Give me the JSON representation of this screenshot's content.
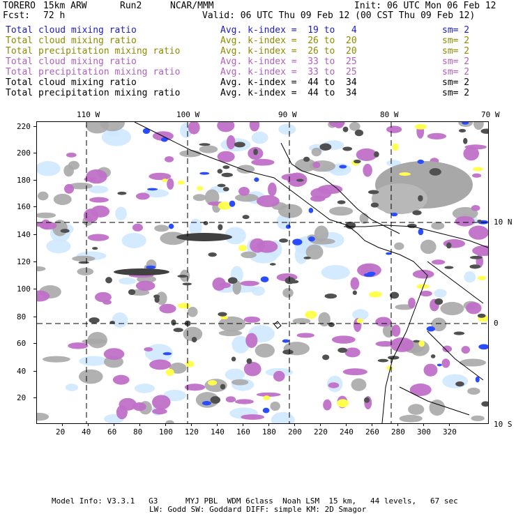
{
  "header": {
    "model": "TORERO",
    "resolution": "15km ARW",
    "run": "Run2",
    "org": "NCAR/MMM",
    "init": "Init: 06 UTC Mon 06 Feb 12",
    "fcst_label": "Fcst:",
    "fcst_value": "72 h",
    "valid": "Valid: 06 UTC Thu 09 Feb 12 (00 CST Thu 09 Feb 12)"
  },
  "legend": [
    {
      "field": "Total cloud mixing ratio",
      "index": "Avg. k-index =  19 to   4",
      "sm": "sm= 2",
      "color": "#1c1ccc"
    },
    {
      "field": "Total cloud mixing ratio",
      "index": "Avg. k-index =  26 to  20",
      "sm": "sm= 2",
      "color": "#8c8c00"
    },
    {
      "field": "Total precipitation mixing ratio",
      "index": "Avg. k-index =  26 to  20",
      "sm": "sm= 2",
      "color": "#8c8c00"
    },
    {
      "field": "Total cloud mixing ratio",
      "index": "Avg. k-index =  33 to  25",
      "sm": "sm= 2",
      "color": "#b060c0"
    },
    {
      "field": "Total precipitation mixing ratio",
      "index": "Avg. k-index =  33 to  25",
      "sm": "sm= 2",
      "color": "#b060c0"
    },
    {
      "field": "Total cloud mixing ratio",
      "index": "Avg. k-index =  44 to  34",
      "sm": "sm= 2",
      "color": "#000000"
    },
    {
      "field": "Total precipitation mixing ratio",
      "index": "Avg. k-index =  44 to  34",
      "sm": "sm= 2",
      "color": "#000000"
    }
  ],
  "map": {
    "lon_labels": [
      "110 W",
      "100 W",
      "90 W",
      "80 W",
      "70 W"
    ],
    "lat_labels": [
      "10 N",
      "0",
      "10 S"
    ],
    "y_ticks": [
      "220",
      "200",
      "180",
      "160",
      "140",
      "120",
      "100",
      "80",
      "60",
      "40",
      "20"
    ],
    "x_ticks": [
      "20",
      "40",
      "60",
      "80",
      "100",
      "120",
      "140",
      "160",
      "180",
      "200",
      "220",
      "240",
      "260",
      "280",
      "300",
      "320"
    ],
    "colors": {
      "blue": "#2a4cff",
      "lightblue": "#cfe8ff",
      "yellow": "#ffff50",
      "magenta": "#c070c8",
      "gray": "#a8a8a8",
      "dark": "#505050"
    }
  },
  "footer": {
    "line1": "Model Info: V3.3.1   G3      MYJ PBL  WDM 6class  Noah LSM  15 km,   44 levels,   67 sec",
    "line2": "LW: Godd SW: Goddard DIFF: simple KM: 2D Smagor"
  }
}
